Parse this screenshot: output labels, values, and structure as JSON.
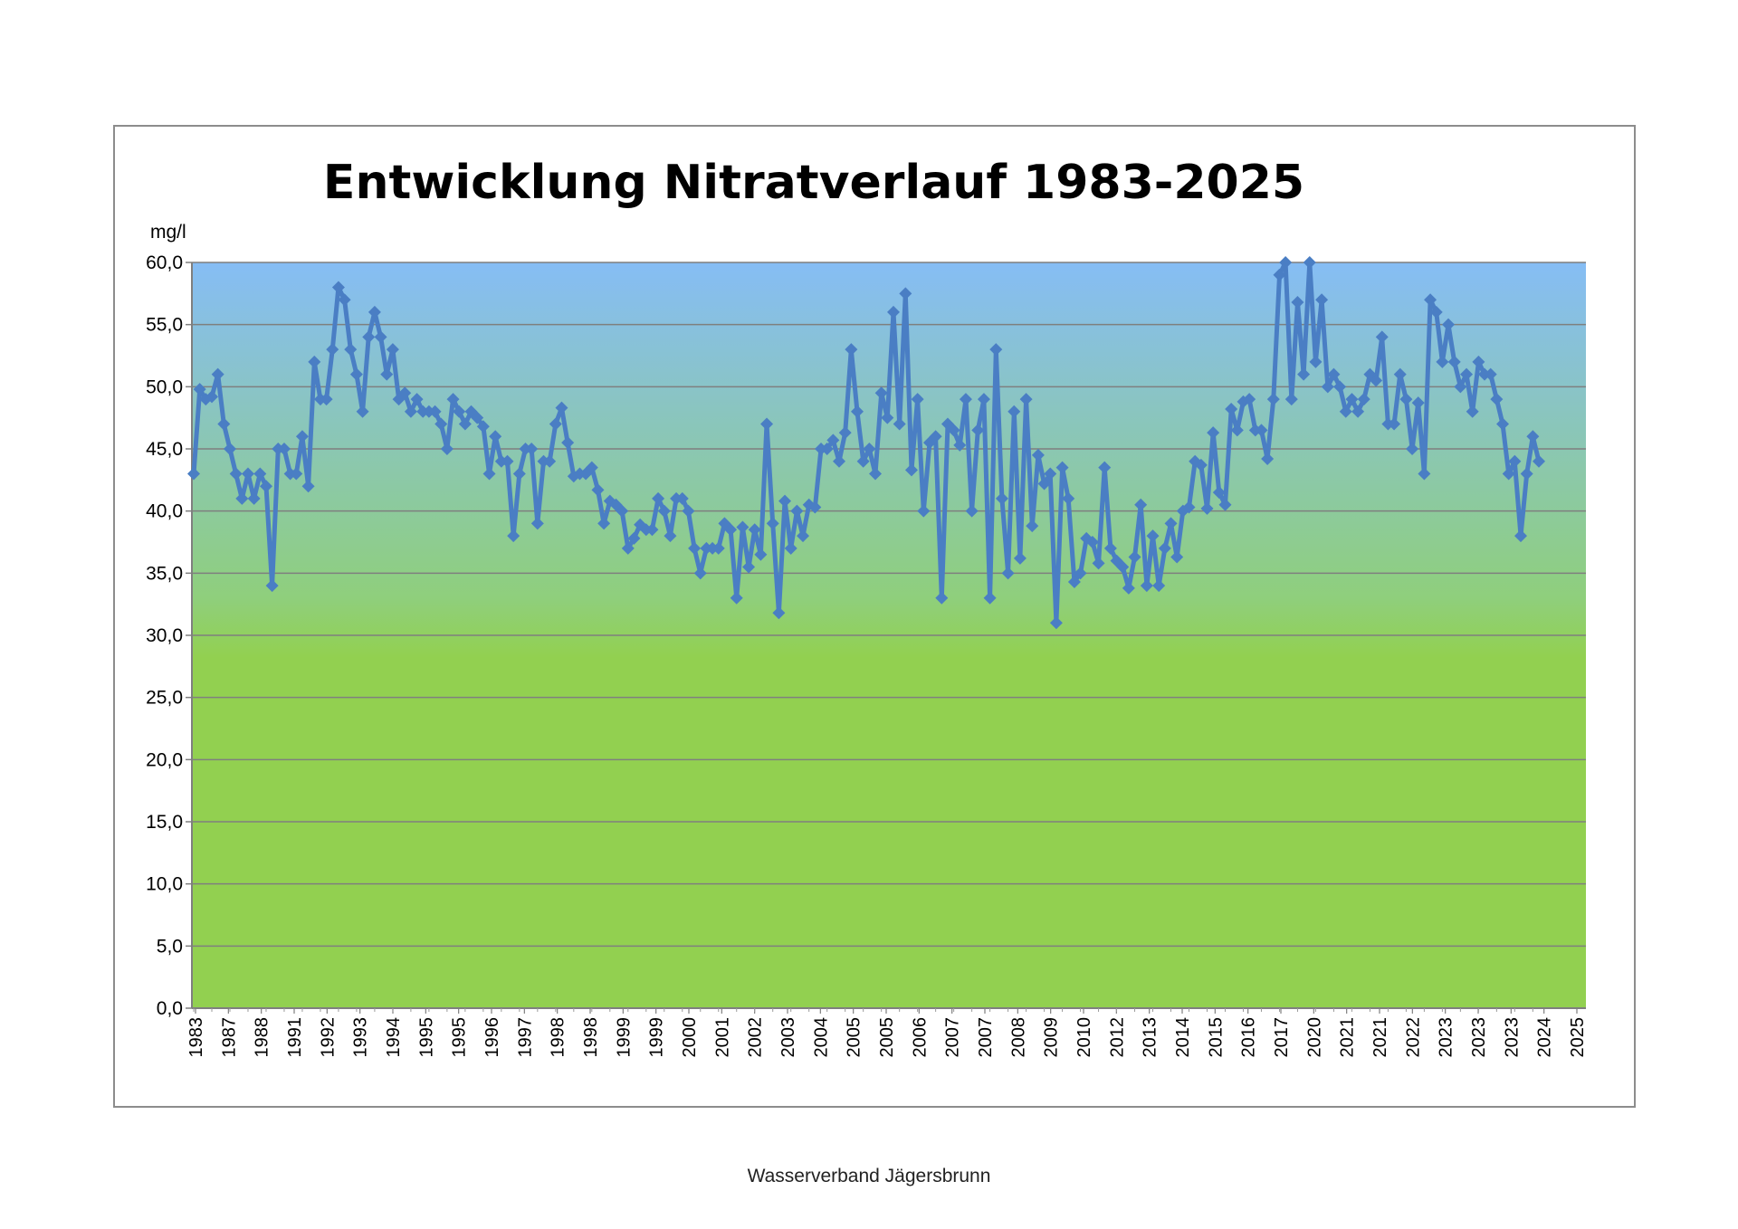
{
  "chart_data": {
    "type": "line",
    "title": "Entwicklung Nitratverlauf 1983-2025",
    "ylabel": "mg/l",
    "xlabel": "",
    "ylim": [
      0,
      60
    ],
    "ytick_labels": [
      "0,0",
      "5,0",
      "10,0",
      "15,0",
      "20,0",
      "25,0",
      "30,0",
      "35,0",
      "40,0",
      "45,0",
      "50,0",
      "55,0",
      "60,0"
    ],
    "x_tick_labels": [
      "1983",
      "1987",
      "1988",
      "1991",
      "1992",
      "1993",
      "1994",
      "1995",
      "1995",
      "1996",
      "1997",
      "1998",
      "1998",
      "1999",
      "1999",
      "2000",
      "2001",
      "2002",
      "2003",
      "2004",
      "2005",
      "2005",
      "2006",
      "2007",
      "2007",
      "2008",
      "2009",
      "2010",
      "2012",
      "2013",
      "2014",
      "2015",
      "2016",
      "2017",
      "2020",
      "2021",
      "2021",
      "2022",
      "2023",
      "2023",
      "2023",
      "2024",
      "2025"
    ],
    "grid": true,
    "legend": "none",
    "background_gradient": [
      "#86bdf5",
      "#8fcf7c",
      "#92d050"
    ],
    "line_color": "#4a7ec4",
    "series": [
      {
        "values": [
          43.0,
          49.8,
          49.0,
          49.2,
          51.0,
          47.0,
          45.0,
          43.0,
          41.0,
          43.0,
          41.0,
          43.0,
          42.0,
          34.0,
          45.0,
          45.0,
          43.0,
          43.0,
          46.0,
          42.0,
          52.0,
          49.0,
          49.0,
          53.0,
          58.0,
          57.0,
          53.0,
          51.0,
          48.0,
          54.0,
          56.0,
          54.0,
          51.0,
          53.0,
          49.0,
          49.5,
          48.0,
          49.0,
          48.0,
          48.0,
          48.0,
          47.0,
          45.0,
          49.0,
          48.0,
          47.0,
          48.0,
          47.5,
          46.8,
          43.0,
          46.0,
          44.0,
          44.0,
          38.0,
          43.0,
          45.0,
          45.0,
          39.0,
          44.0,
          44.0,
          47.0,
          48.3,
          45.5,
          42.8,
          43.0,
          43.0,
          43.5,
          41.7,
          39.0,
          40.8,
          40.5,
          40.0,
          37.0,
          37.8,
          38.9,
          38.5,
          38.5,
          41.0,
          40.0,
          38.0,
          41.0,
          41.0,
          40.0,
          37.0,
          35.0,
          37.0,
          37.0,
          37.0,
          39.0,
          38.5,
          33.0,
          38.7,
          35.5,
          38.5,
          36.5,
          47.0,
          39.0,
          31.8,
          40.8,
          37.0,
          40.0,
          38.0,
          40.5,
          40.3,
          45.0,
          45.0,
          45.7,
          44.0,
          46.3,
          53.0,
          48.0,
          44.0,
          45.0,
          43.0,
          49.5,
          47.5,
          56.0,
          47.0,
          57.5,
          43.3,
          49.0,
          40.0,
          45.5,
          46.0,
          33.0,
          47.0,
          46.5,
          45.3,
          49.0,
          40.0,
          46.5,
          49.0,
          33.0,
          53.0,
          41.0,
          35.0,
          48.0,
          36.2,
          49.0,
          38.8,
          44.5,
          42.2,
          43.0,
          31.0,
          43.5,
          41.0,
          34.3,
          35.0,
          37.8,
          37.5,
          35.8,
          43.5,
          37.0,
          36.0,
          35.5,
          33.8,
          36.3,
          40.5,
          34.0,
          38.0,
          34.0,
          37.0,
          39.0,
          36.3,
          40.0,
          40.3,
          44.0,
          43.7,
          40.2,
          46.3,
          41.5,
          40.5,
          48.2,
          46.5,
          48.8,
          49.0,
          46.5,
          46.5,
          44.2,
          49.0,
          59.0,
          60.0,
          49.0,
          56.8,
          51.0,
          60.0,
          52.0,
          57.0,
          50.0,
          51.0,
          50.0,
          48.0,
          49.0,
          48.0,
          49.0,
          51.0,
          50.5,
          54.0,
          47.0,
          47.0,
          51.0,
          49.0,
          45.0,
          48.7,
          43.0,
          57.0,
          56.0,
          52.0,
          55.0,
          52.0,
          50.0,
          51.0,
          48.0,
          52.0,
          51.0,
          51.0,
          49.0,
          47.0,
          43.0,
          44.0,
          38.0,
          43.0,
          46.0,
          44.0
        ]
      }
    ]
  },
  "footer": "Wasserverband Jägersbrunn"
}
